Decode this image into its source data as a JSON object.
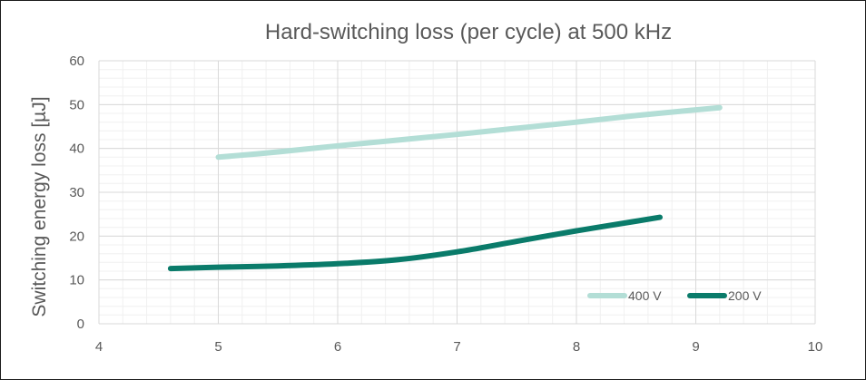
{
  "chart_data": {
    "type": "line",
    "title": "Hard-switching loss (per cycle) at 500 kHz",
    "xlabel": "",
    "ylabel": "Switching energy loss [µJ]",
    "xlim": [
      4,
      10
    ],
    "ylim": [
      0,
      60
    ],
    "xticks": [
      4,
      5,
      6,
      7,
      8,
      9,
      10
    ],
    "yticks": [
      0,
      10,
      20,
      30,
      40,
      50,
      60
    ],
    "grid": true,
    "legend_position": "bottom-right",
    "series": [
      {
        "name": "400 V",
        "color": "#b3ded6",
        "x": [
          5.0,
          5.5,
          6.0,
          6.5,
          7.0,
          7.5,
          8.0,
          8.5,
          9.0,
          9.2
        ],
        "y": [
          38.0,
          39.2,
          40.6,
          41.9,
          43.2,
          44.6,
          46.0,
          47.5,
          48.8,
          49.3
        ]
      },
      {
        "name": "200 V",
        "color": "#0a7b6a",
        "x": [
          4.6,
          5.0,
          5.5,
          6.0,
          6.5,
          7.0,
          7.5,
          8.0,
          8.5,
          8.7
        ],
        "y": [
          12.6,
          12.9,
          13.2,
          13.7,
          14.6,
          16.4,
          18.8,
          21.2,
          23.4,
          24.3
        ]
      }
    ]
  }
}
